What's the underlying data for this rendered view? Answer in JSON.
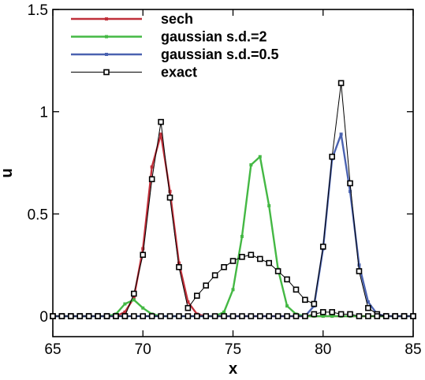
{
  "chart_data": {
    "type": "line",
    "title": "",
    "xlabel": "x",
    "ylabel": "u",
    "xlim": [
      65,
      85
    ],
    "ylim": [
      -0.1,
      1.5
    ],
    "xticks": [
      65,
      70,
      75,
      80,
      85
    ],
    "xtick_labels": [
      "65",
      "70",
      "75",
      "80",
      "85"
    ],
    "yticks": [
      0,
      0.5,
      1,
      1.5
    ],
    "ytick_labels": [
      "0",
      "0.5",
      "1",
      "1.5"
    ],
    "grid": false,
    "legend_position": "top-left",
    "series": [
      {
        "name": "sech",
        "color": "#c0303a",
        "stroke_width": 2.4,
        "marker_style": "small-filled",
        "x": [
          65,
          65.5,
          66,
          66.5,
          67,
          67.5,
          68,
          68.5,
          69,
          69.5,
          70,
          70.5,
          71,
          71.5,
          72,
          72.5,
          73,
          73.5,
          74,
          74.5,
          75,
          75.5,
          76,
          76.5,
          77,
          77.5,
          78,
          78.5,
          79,
          79.5,
          80,
          80.5,
          81,
          81.5,
          82,
          82.5,
          83,
          83.5,
          84,
          84.5,
          85
        ],
        "y": [
          0,
          0,
          0,
          0,
          0,
          0,
          0,
          0,
          0.02,
          0.09,
          0.33,
          0.73,
          0.89,
          0.61,
          0.26,
          0.07,
          0.01,
          0,
          0,
          0,
          0,
          0,
          0,
          0,
          0,
          0,
          0,
          0,
          0,
          0,
          0,
          0,
          0,
          0,
          0,
          0,
          0,
          0,
          0,
          0,
          0
        ]
      },
      {
        "name": "gaussian s.d.=2",
        "color": "#44b844",
        "stroke_width": 2.4,
        "marker_style": "small-filled",
        "x": [
          65,
          65.5,
          66,
          66.5,
          67,
          67.5,
          68,
          68.5,
          69,
          69.5,
          70,
          70.5,
          71,
          71.5,
          72,
          72.5,
          73,
          73.5,
          74,
          74.5,
          75,
          75.5,
          76,
          76.5,
          77,
          77.5,
          78,
          78.5,
          79,
          79.5,
          80,
          80.5,
          81,
          81.5,
          82,
          82.5,
          83,
          83.5,
          84,
          84.5,
          85
        ],
        "y": [
          0,
          0,
          0,
          0,
          0,
          0,
          0,
          0.01,
          0.06,
          0.08,
          0.04,
          0.01,
          0,
          0,
          0,
          0,
          0,
          0,
          0,
          0.02,
          0.13,
          0.39,
          0.74,
          0.78,
          0.54,
          0.23,
          0.05,
          0.01,
          0,
          0,
          0,
          0,
          0,
          0,
          0,
          0,
          0,
          0,
          0,
          0,
          0
        ]
      },
      {
        "name": "gaussian s.d.=0.5",
        "color": "#4a62b0",
        "stroke_width": 2.4,
        "marker_style": "small-filled",
        "x": [
          65,
          65.5,
          66,
          66.5,
          67,
          67.5,
          68,
          68.5,
          69,
          69.5,
          70,
          70.5,
          71,
          71.5,
          72,
          72.5,
          73,
          73.5,
          74,
          74.5,
          75,
          75.5,
          76,
          76.5,
          77,
          77.5,
          78,
          78.5,
          79,
          79.5,
          80,
          80.5,
          81,
          81.5,
          82,
          82.5,
          83,
          83.5,
          84,
          84.5,
          85
        ],
        "y": [
          0,
          0,
          0,
          0,
          0,
          0,
          0,
          0,
          0,
          0,
          0,
          0,
          0,
          0,
          0,
          0,
          0,
          0,
          0,
          0,
          0,
          0,
          0,
          0,
          0,
          0,
          0,
          0,
          0,
          0.05,
          0.33,
          0.77,
          0.89,
          0.61,
          0.25,
          0.07,
          0.01,
          0,
          0,
          0,
          0
        ]
      },
      {
        "name": "exact",
        "color": "#000000",
        "stroke_width": 1,
        "marker_style": "hollow-square",
        "x": [
          65,
          65.5,
          66,
          66.5,
          67,
          67.5,
          68,
          68.5,
          69,
          69.5,
          70,
          70.5,
          71,
          71.5,
          72,
          72.5,
          73,
          73.5,
          74,
          74.5,
          75,
          75.5,
          76,
          76.5,
          77,
          77.5,
          78,
          78.5,
          79,
          79.5,
          80,
          80.5,
          81,
          81.5,
          82,
          82.5,
          83,
          83.5,
          84,
          84.5,
          85
        ],
        "y": [
          0,
          0,
          0,
          0,
          0,
          0,
          0,
          0,
          0,
          0.11,
          0.3,
          0.67,
          0.95,
          0.58,
          0.24,
          0.04,
          0.1,
          0.15,
          0.2,
          0.24,
          0.27,
          0.29,
          0.3,
          0.28,
          0.26,
          0.22,
          0.18,
          0.13,
          0.08,
          0.06,
          0.34,
          0.78,
          1.14,
          0.65,
          0.22,
          0.04,
          0.01,
          0,
          0,
          0,
          0
        ]
      },
      {
        "name": "",
        "color": "#000000",
        "stroke_width": 1,
        "marker_style": "hollow-square",
        "x": [
          65,
          65.5,
          66,
          66.5,
          67,
          67.5,
          68,
          68.5,
          69,
          69.5,
          70,
          70.5,
          71,
          71.5,
          72,
          72.5,
          73,
          73.5,
          74,
          74.5,
          75,
          75.5,
          76,
          76.5,
          77,
          77.5,
          78,
          78.5,
          79,
          79.5,
          80,
          80.5,
          81,
          81.5,
          82,
          82.5,
          83,
          83.5,
          84,
          84.5,
          85
        ],
        "y": [
          0,
          0,
          0,
          0,
          0,
          0,
          0,
          0,
          0,
          0,
          0,
          0,
          0,
          0,
          0,
          0,
          0,
          0,
          0,
          0,
          0,
          0,
          0,
          0,
          0,
          0,
          0,
          0,
          0,
          0.01,
          0.02,
          0.02,
          0.01,
          0.01,
          0,
          0,
          0,
          0,
          0,
          0,
          0
        ]
      }
    ]
  }
}
